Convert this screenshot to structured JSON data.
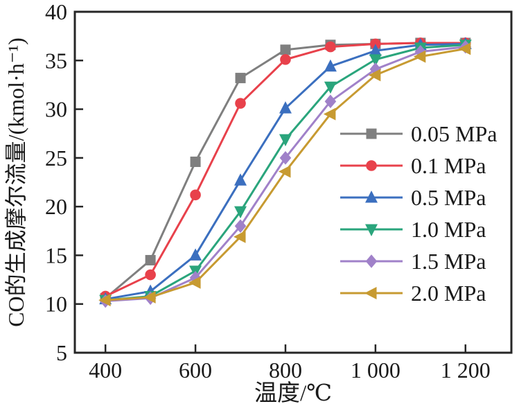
{
  "figure": {
    "background": "#ffffff",
    "axis_color": "#262626",
    "text_color": "#1a1a1a"
  },
  "chart_data": {
    "type": "line",
    "title": "",
    "xlabel": "温度/℃",
    "ylabel": "CO的生成摩尔流量/(kmol·h⁻¹)",
    "categories": [
      400,
      500,
      600,
      700,
      800,
      900,
      1000,
      1100,
      1200
    ],
    "x_ticks": [
      400,
      600,
      800,
      1000,
      1200
    ],
    "x_tick_labels": [
      "400",
      "600",
      "800",
      "1 000",
      "1 200"
    ],
    "xlim": [
      332,
      1302
    ],
    "y_ticks": [
      40,
      35,
      30,
      25,
      20,
      15,
      10,
      5
    ],
    "y_tick_labels": [
      "40",
      "35",
      "30",
      "25",
      "20",
      "15",
      "10",
      "5"
    ],
    "ylim": [
      5,
      40
    ],
    "grid": false,
    "legend_position": "inside-right",
    "series": [
      {
        "name": "0.05 MPa",
        "marker": "square",
        "color": "#7f7f7f",
        "values": [
          10.6,
          14.5,
          24.6,
          33.2,
          36.1,
          36.6,
          36.7,
          36.8,
          36.8
        ]
      },
      {
        "name": "0.1 MPa",
        "marker": "circle",
        "color": "#e8414b",
        "values": [
          10.8,
          13.0,
          21.2,
          30.6,
          35.1,
          36.4,
          36.7,
          36.8,
          36.8
        ]
      },
      {
        "name": "0.5 MPa",
        "marker": "triangle-up",
        "color": "#3b6fbf",
        "values": [
          10.5,
          11.3,
          15.0,
          22.7,
          30.1,
          34.4,
          36.0,
          36.6,
          36.7
        ]
      },
      {
        "name": "1.0 MPa",
        "marker": "triangle-down",
        "color": "#2aa57c",
        "values": [
          10.4,
          10.8,
          13.4,
          19.5,
          26.9,
          32.3,
          35.1,
          36.3,
          36.6
        ]
      },
      {
        "name": "1.5 MPa",
        "marker": "diamond",
        "color": "#a081c9",
        "values": [
          10.3,
          10.6,
          12.7,
          18.0,
          25.0,
          30.8,
          34.1,
          35.9,
          36.4
        ]
      },
      {
        "name": "2.0 MPa",
        "marker": "triangle-left",
        "color": "#c79a31",
        "values": [
          10.4,
          10.7,
          12.2,
          16.9,
          23.6,
          29.5,
          33.5,
          35.4,
          36.2
        ]
      }
    ]
  }
}
